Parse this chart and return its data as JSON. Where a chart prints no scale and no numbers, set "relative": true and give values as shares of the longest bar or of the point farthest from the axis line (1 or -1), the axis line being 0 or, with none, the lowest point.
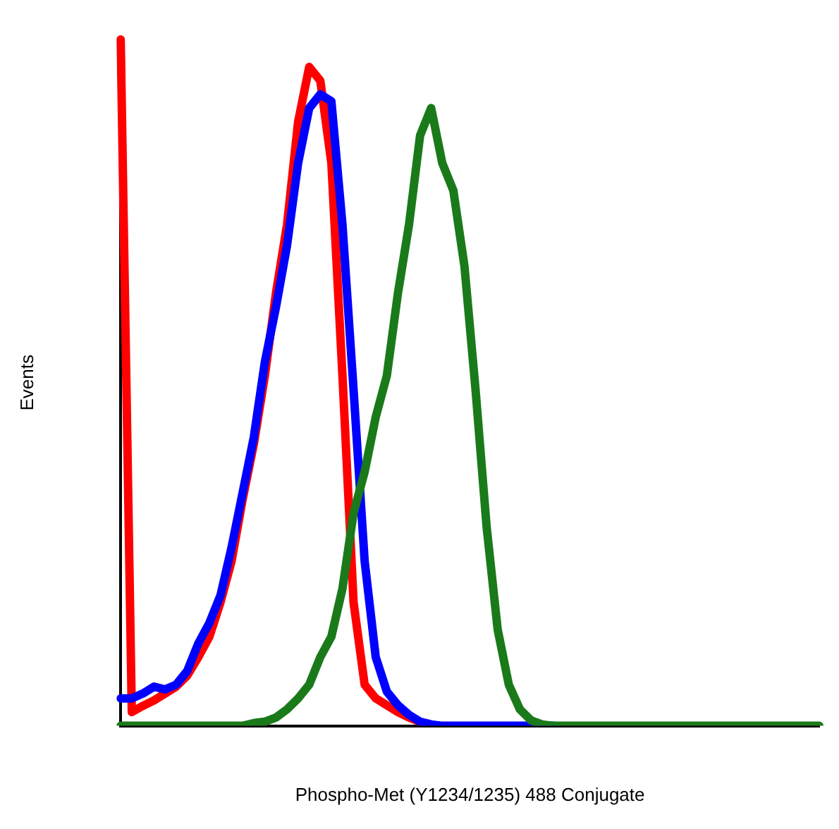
{
  "chart_data": {
    "type": "line",
    "relative": true,
    "xlabel": "Phospho-Met (Y1234/1235) 488 Conjugate",
    "ylabel": "Events",
    "marker": "none",
    "line_style": "solid",
    "grid": false,
    "legend": false,
    "categories": [
      null,
      null,
      null,
      null,
      null,
      null,
      null,
      null,
      null,
      null,
      null,
      null,
      null,
      null,
      null,
      null,
      null,
      null,
      null,
      null,
      null,
      null,
      null,
      null,
      null,
      null,
      null,
      null,
      null,
      null,
      null,
      null,
      null,
      null,
      null,
      null,
      null,
      null,
      null,
      null,
      null,
      null,
      null,
      null,
      null,
      null,
      null,
      null,
      null,
      null,
      null,
      null,
      null,
      null,
      null,
      null,
      null,
      null,
      null,
      null,
      null,
      null,
      null,
      null
    ],
    "series": [
      {
        "color": "#1a7a1a",
        "values": [
          0,
          0,
          0,
          0,
          0,
          0,
          0,
          0,
          0,
          0,
          0,
          0,
          0.004,
          0.006,
          0.012,
          0.024,
          0.04,
          0.06,
          0.1,
          0.13,
          0.2,
          0.31,
          0.37,
          0.45,
          0.51,
          0.63,
          0.73,
          0.86,
          0.9,
          0.82,
          0.78,
          0.67,
          0.49,
          0.29,
          0.14,
          0.06,
          0.024,
          0.008,
          0.002,
          0,
          0,
          0,
          0,
          0,
          0,
          0,
          0,
          0,
          0,
          0,
          0,
          0,
          0,
          0,
          0,
          0,
          0,
          0,
          0,
          0,
          0,
          0,
          0,
          0
        ]
      },
      {
        "color": "#0000ff",
        "values": [
          0.04,
          0.04,
          0.047,
          0.057,
          0.053,
          0.06,
          0.08,
          0.12,
          0.15,
          0.19,
          0.26,
          0.34,
          0.42,
          0.53,
          0.61,
          0.7,
          0.82,
          0.9,
          0.92,
          0.91,
          0.73,
          0.49,
          0.24,
          0.1,
          0.05,
          0.03,
          0.016,
          0.006,
          0.002,
          0,
          0,
          0,
          0,
          0,
          0,
          0,
          0,
          0,
          0,
          0,
          null,
          null,
          null,
          null,
          null,
          null,
          null,
          null,
          null,
          null,
          null,
          null,
          null,
          null,
          null,
          null,
          null,
          null,
          null,
          null,
          null,
          null,
          null,
          null
        ]
      },
      {
        "color": "#ff0000",
        "values": [
          1,
          0.02,
          0.029,
          0.037,
          0.047,
          0.057,
          0.073,
          0.1,
          0.13,
          0.18,
          0.24,
          0.33,
          0.41,
          0.51,
          0.63,
          0.73,
          0.88,
          0.96,
          0.94,
          0.82,
          0.51,
          0.18,
          0.06,
          0.04,
          0.03,
          0.02,
          0.012,
          0.006,
          null,
          null,
          null,
          null,
          null,
          null,
          null,
          null,
          null,
          null,
          null,
          null,
          null,
          null,
          null,
          null,
          null,
          null,
          null,
          null,
          null,
          null,
          null,
          null,
          null,
          null,
          null,
          null,
          null,
          null,
          null,
          null,
          null,
          null,
          null,
          null
        ]
      }
    ]
  }
}
